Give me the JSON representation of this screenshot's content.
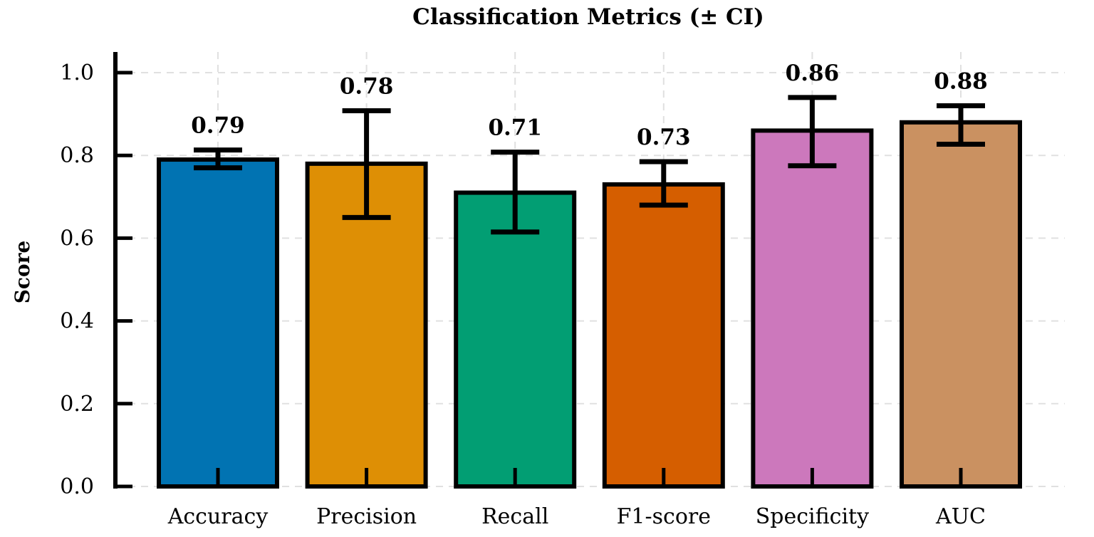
{
  "chart_data": {
    "type": "bar",
    "title": "Classification Metrics (± CI)",
    "xlabel": "",
    "ylabel": "Score",
    "ylim": [
      0,
      1.05
    ],
    "yticks": [
      "0.0",
      "0.2",
      "0.4",
      "0.6",
      "0.8",
      "1.0"
    ],
    "grid": true,
    "categories": [
      "Accuracy",
      "Precision",
      "Recall",
      "F1-score",
      "Specificity",
      "AUC"
    ],
    "values": [
      0.79,
      0.78,
      0.71,
      0.73,
      0.86,
      0.88
    ],
    "value_labels": [
      "0.79",
      "0.78",
      "0.71",
      "0.73",
      "0.86",
      "0.88"
    ],
    "ci_low": [
      0.77,
      0.65,
      0.615,
      0.68,
      0.775,
      0.827
    ],
    "ci_high": [
      0.813,
      0.908,
      0.808,
      0.785,
      0.94,
      0.92
    ],
    "colors": [
      "#0173b2",
      "#de8f05",
      "#029e73",
      "#d55e00",
      "#cc78bc",
      "#ca9161"
    ]
  }
}
